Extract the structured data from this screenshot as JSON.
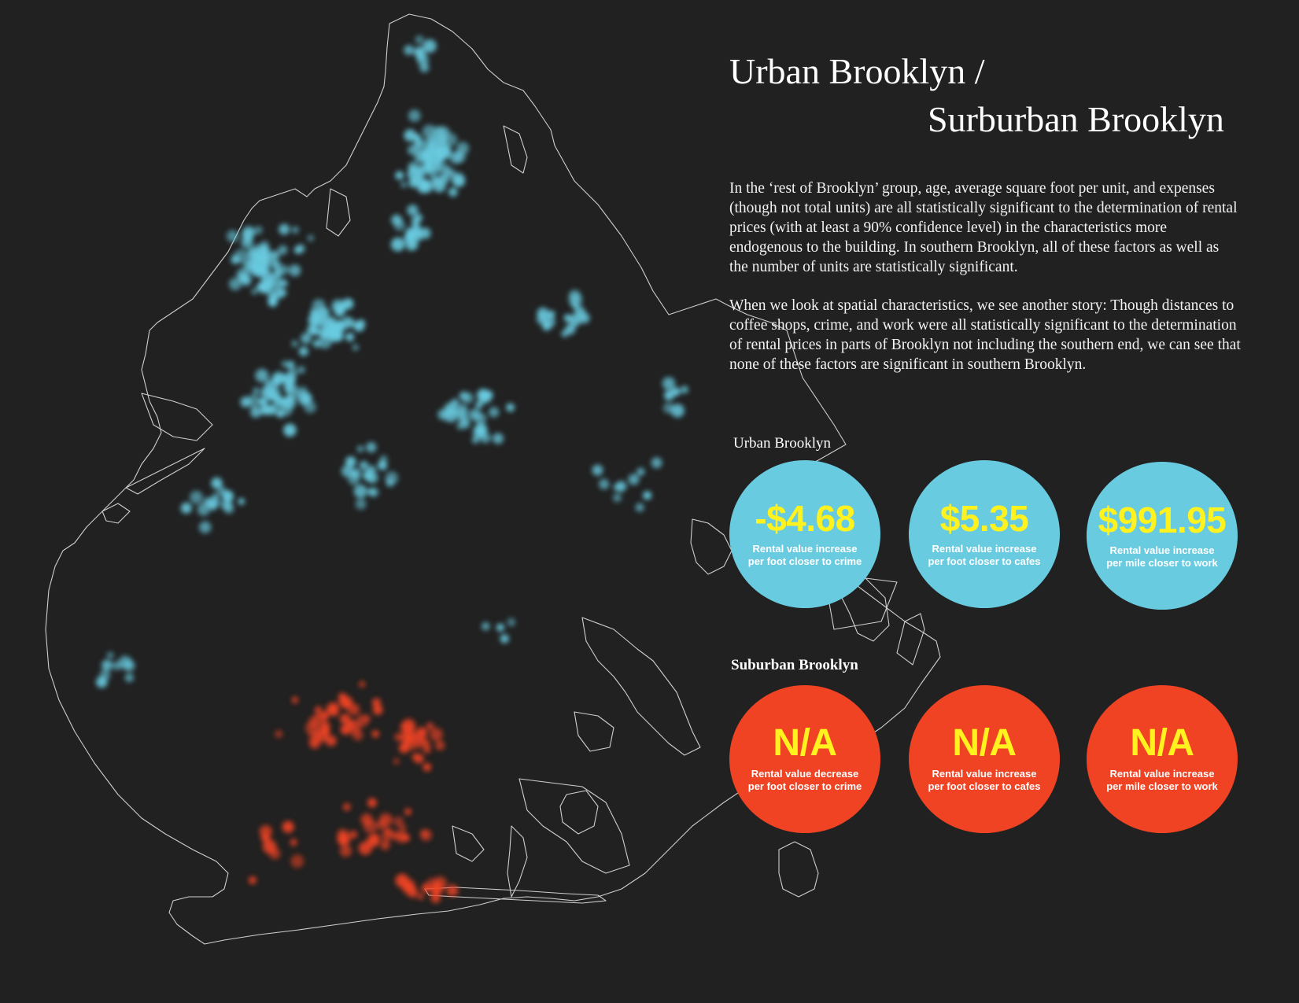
{
  "title": {
    "line1": "Urban Brooklyn /",
    "line2": "Surburban Brooklyn"
  },
  "paragraphs": [
    "In the ‘rest of Brooklyn’ group, age, average square foot per unit, and expenses (though not total units) are all statistically significant to the determination of rental prices (with at least a 90% confidence level) in the characteristics more endogenous to the building.  In southern Brooklyn, all of these factors as well as the number of units are statistically significant.",
    "When we look at spatial characteristics, we see another story:  Though distances to coffee shops, crime, and work were all statistically significant to the determination of rental prices in parts of Brooklyn not including the southern end, we can see that none of these factors are significant in southern Brooklyn."
  ],
  "urban": {
    "label": "Urban Brooklyn",
    "color": "#69cbe0",
    "stats": [
      {
        "value": "-$4.68",
        "line1": "Rental value increase",
        "line2": "per foot closer to crime"
      },
      {
        "value": "$5.35",
        "line1": "Rental value increase",
        "line2": "per foot closer to cafes"
      },
      {
        "value": "$991.95",
        "line1": "Rental value increase",
        "line2": "per mile closer to work"
      }
    ]
  },
  "suburban": {
    "label": "Suburban Brooklyn",
    "color": "#ef4324",
    "stats": [
      {
        "value": "N/A",
        "line1": "Rental value decrease",
        "line2": "per foot closer to crime"
      },
      {
        "value": "N/A",
        "line1": "Rental value increase",
        "line2": "per foot closer to cafes"
      },
      {
        "value": "N/A",
        "line1": "Rental value increase",
        "line2": "per mile closer to work"
      }
    ]
  },
  "colors": {
    "background": "#212121",
    "value_text": "#fff21e",
    "outline": "#cfcfcf"
  }
}
